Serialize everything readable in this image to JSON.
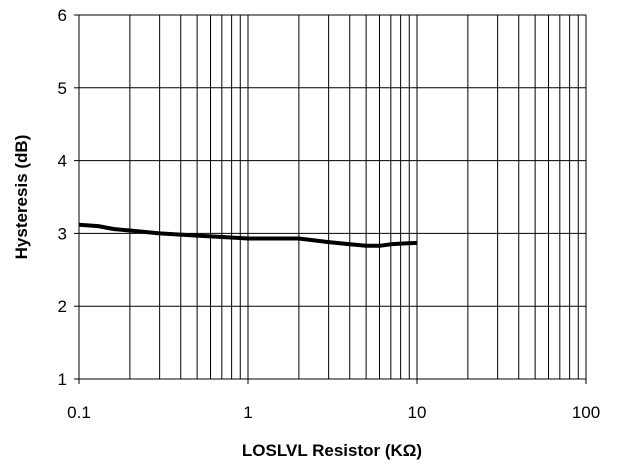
{
  "chart_data": {
    "type": "line",
    "title": "",
    "xlabel": "LOSLVL Resistor (KΩ)",
    "ylabel": "Hysteresis (dB)",
    "xscale": "log",
    "xlim": [
      0.1,
      100
    ],
    "ylim": [
      1,
      6
    ],
    "grid": true,
    "legend": "none",
    "x_ticks": [
      0.1,
      1,
      10,
      100
    ],
    "x_tick_labels": [
      "0.1",
      "1",
      "10",
      "100"
    ],
    "y_ticks": [
      1,
      2,
      3,
      4,
      5,
      6
    ],
    "y_tick_labels": [
      "1",
      "2",
      "3",
      "4",
      "5",
      "6"
    ],
    "line_color": "#000000",
    "series": [
      {
        "x": [
          0.1,
          0.13,
          0.16,
          0.2,
          0.3,
          0.5,
          0.7,
          1,
          1.5,
          2,
          3,
          4,
          5,
          6,
          7,
          8,
          10
        ],
        "y": [
          3.12,
          3.1,
          3.06,
          3.04,
          3.0,
          2.97,
          2.95,
          2.93,
          2.93,
          2.93,
          2.88,
          2.85,
          2.83,
          2.83,
          2.85,
          2.86,
          2.87
        ]
      }
    ]
  }
}
